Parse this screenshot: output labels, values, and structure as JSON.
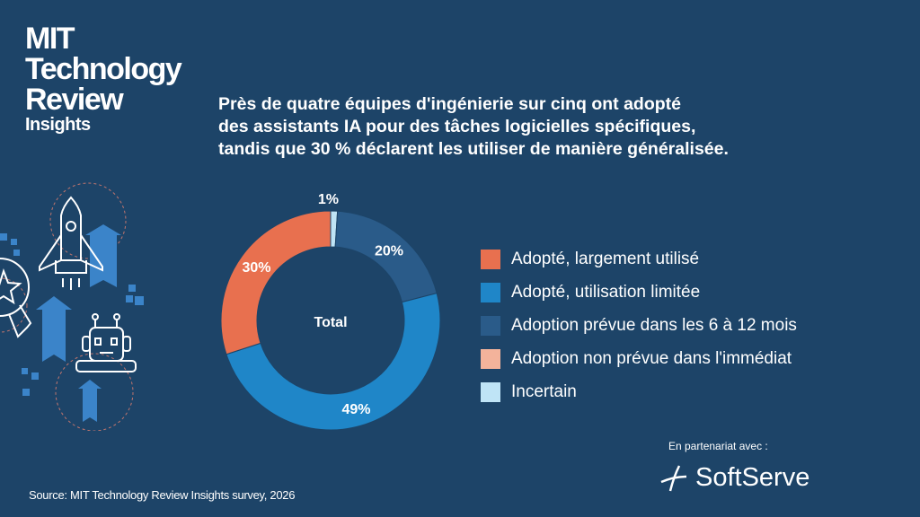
{
  "logo": {
    "lines": [
      "MIT",
      "Technology",
      "Review"
    ],
    "sub": "Insights"
  },
  "chart_data": {
    "type": "pie",
    "title": "Près de quatre équipes d'ingénierie sur cinq ont adopté des assistants IA pour des tâches logicielles spécifiques, tandis que 30 % déclarent les utiliser de manière généralisée.",
    "title_lines": [
      "Près de quatre équipes d'ingénierie sur cinq ont adopté",
      "des assistants IA pour des tâches logicielles spécifiques,",
      "tandis que 30 % déclarent les utiliser de manière généralisée."
    ],
    "center_label": "Total",
    "donut": true,
    "legend_placement": "right",
    "slices": [
      {
        "name": "Adopté, largement utilisé",
        "value": 30,
        "label": "30%",
        "color": "#e8704f"
      },
      {
        "name": "Adopté, utilisation limitée",
        "value": 49,
        "label": "49%",
        "color": "#1f86c8"
      },
      {
        "name": "Adoption prévue dans les 6 à 12 mois",
        "value": 20,
        "label": "20%",
        "color": "#2a5b89"
      },
      {
        "name": "Adoption non prévue dans l'immédiat",
        "value": 0,
        "label": "",
        "color": "#f3b39b"
      },
      {
        "name": "Incertain",
        "value": 1,
        "label": "1%",
        "color": "#bfe4f6"
      }
    ]
  },
  "source": "Source: MIT Technology Review Insights survey, 2026",
  "partner": {
    "label": "En partenariat avec :",
    "name": "SoftServe"
  },
  "icons": [
    "rocket-icon",
    "robot-icon",
    "award-ribbon-icon",
    "up-arrow-icon"
  ]
}
